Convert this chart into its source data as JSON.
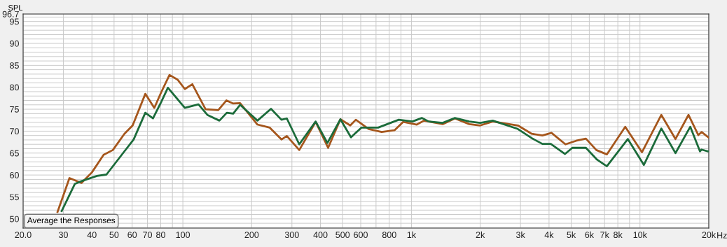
{
  "chart_data": {
    "type": "line",
    "ylabel": "SPL",
    "log": "x",
    "xlabel": "Hz",
    "grid": true,
    "marker": "none",
    "line_style": "solid",
    "xlim": [
      20,
      20000
    ],
    "ylim": [
      47.9,
      96.7
    ],
    "xticks": [
      {
        "value": 20,
        "label": "20.0"
      },
      30,
      40,
      50,
      60,
      70,
      80,
      {
        "value": 90,
        "label": null
      },
      100,
      200,
      300,
      400,
      500,
      600,
      {
        "value": 700,
        "label": null
      },
      800,
      {
        "value": 900,
        "label": null
      },
      {
        "value": 1000,
        "label": "1k"
      },
      {
        "value": 2000,
        "label": "2k"
      },
      {
        "value": 3000,
        "label": "3k"
      },
      {
        "value": 4000,
        "label": "4k"
      },
      {
        "value": 5000,
        "label": "5k"
      },
      {
        "value": 6000,
        "label": "6k"
      },
      {
        "value": 7000,
        "label": "7k"
      },
      {
        "value": 8000,
        "label": "8k"
      },
      {
        "value": 9000,
        "label": null
      },
      {
        "value": 10000,
        "label": "10k"
      },
      {
        "value": 20000,
        "label": "20k"
      }
    ],
    "yticks": [
      {
        "value": 48,
        "label": null
      },
      {
        "value": 49,
        "label": null
      },
      50,
      {
        "value": 51,
        "label": null
      },
      {
        "value": 52,
        "label": null
      },
      {
        "value": 53,
        "label": null
      },
      {
        "value": 54,
        "label": null
      },
      55,
      {
        "value": 56,
        "label": null
      },
      {
        "value": 57,
        "label": null
      },
      {
        "value": 58,
        "label": null
      },
      {
        "value": 59,
        "label": null
      },
      60,
      {
        "value": 61,
        "label": null
      },
      {
        "value": 62,
        "label": null
      },
      {
        "value": 63,
        "label": null
      },
      {
        "value": 64,
        "label": null
      },
      65,
      {
        "value": 66,
        "label": null
      },
      {
        "value": 67,
        "label": null
      },
      {
        "value": 68,
        "label": null
      },
      {
        "value": 69,
        "label": null
      },
      70,
      {
        "value": 71,
        "label": null
      },
      {
        "value": 72,
        "label": null
      },
      {
        "value": 73,
        "label": null
      },
      {
        "value": 74,
        "label": null
      },
      75,
      {
        "value": 76,
        "label": null
      },
      {
        "value": 77,
        "label": null
      },
      {
        "value": 78,
        "label": null
      },
      {
        "value": 79,
        "label": null
      },
      80,
      {
        "value": 81,
        "label": null
      },
      {
        "value": 82,
        "label": null
      },
      {
        "value": 83,
        "label": null
      },
      {
        "value": 84,
        "label": null
      },
      85,
      {
        "value": 86,
        "label": null
      },
      {
        "value": 87,
        "label": null
      },
      {
        "value": 88,
        "label": null
      },
      {
        "value": 89,
        "label": null
      },
      90,
      {
        "value": 91,
        "label": null
      },
      {
        "value": 92,
        "label": null
      },
      {
        "value": 93,
        "label": null
      },
      {
        "value": 94,
        "label": null
      },
      95,
      {
        "value": 96,
        "label": null
      },
      {
        "value": 96.7,
        "label": "96.7"
      }
    ],
    "annotations": [
      "Average the Responses"
    ],
    "series": [
      {
        "color": "#a5561c",
        "x": [
          28.3,
          31.9,
          36,
          40,
          45,
          49.4,
          55.5,
          60.3,
          68.5,
          75,
          80.3,
          87.4,
          95,
          102,
          110,
          125.7,
          142.8,
          155,
          166,
          178,
          212,
          240,
          270,
          285,
          323,
          381,
          432,
          489,
          540,
          571,
          650,
          741,
          843,
          920,
          1056,
          1135,
          1370,
          1550,
          1790,
          2000,
          2270,
          2920,
          3360,
          3740,
          4100,
          4720,
          5250,
          5800,
          6440,
          7160,
          8620,
          10200,
          12400,
          14300,
          16300,
          18000,
          18600,
          20000
        ],
        "values": [
          51.6,
          59.3,
          58.2,
          60.6,
          64.6,
          65.7,
          69.4,
          71.3,
          78.5,
          75.3,
          78.8,
          82.8,
          81.7,
          79.6,
          80.7,
          75.0,
          74.8,
          77.0,
          76.3,
          76.4,
          71.5,
          70.8,
          68.1,
          68.9,
          65.7,
          72.1,
          66.2,
          72.7,
          71.3,
          72.6,
          70.5,
          69.8,
          70.2,
          72.1,
          71.5,
          72.4,
          71.6,
          72.9,
          71.6,
          71.3,
          72.2,
          71.3,
          69.4,
          69.0,
          69.6,
          67.0,
          67.8,
          68.3,
          65.7,
          64.7,
          71.0,
          65.2,
          73.7,
          68.2,
          73.7,
          69.1,
          69.8,
          68.5
        ]
      },
      {
        "color": "#1b6b3a",
        "x": [
          29.5,
          33.7,
          36,
          42.1,
          46.3,
          55.5,
          60.9,
          68.5,
          74,
          80.3,
          86,
          102,
          117,
          128,
          144.5,
          155.7,
          166,
          178,
          212,
          243,
          270,
          285,
          323,
          381,
          429,
          489,
          544,
          604,
          715,
          880,
          1010,
          1110,
          1190,
          1370,
          1550,
          1790,
          2000,
          2270,
          2920,
          3360,
          3740,
          4070,
          4700,
          5060,
          5800,
          6490,
          7160,
          8850,
          10400,
          12400,
          14300,
          16600,
          18300,
          18600,
          19800
        ],
        "values": [
          51.8,
          58.0,
          58.6,
          59.8,
          60.1,
          65.4,
          68.1,
          74.2,
          72.9,
          76.6,
          79.9,
          75.3,
          76.1,
          73.7,
          72.4,
          74.2,
          74.0,
          76.0,
          72.4,
          75.1,
          72.6,
          72.9,
          67.0,
          72.2,
          67.3,
          72.7,
          68.6,
          70.8,
          70.8,
          72.6,
          72.2,
          73.0,
          72.2,
          71.9,
          73.0,
          72.2,
          71.9,
          72.4,
          70.5,
          68.4,
          67.1,
          67.1,
          64.8,
          66.2,
          66.2,
          63.5,
          62.0,
          68.2,
          62.3,
          70.6,
          65.0,
          71.0,
          65.4,
          65.8,
          65.4
        ]
      }
    ]
  }
}
